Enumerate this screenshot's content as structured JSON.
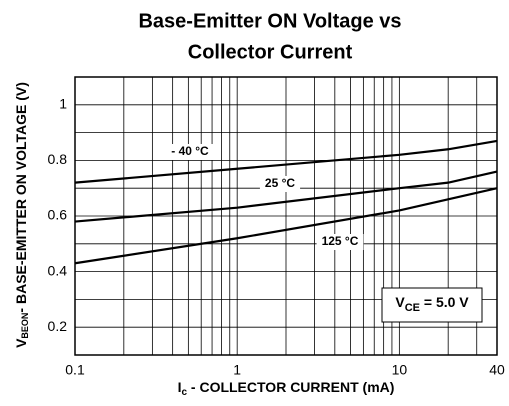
{
  "chart_data": {
    "type": "line",
    "title": [
      "Base-Emitter ON Voltage vs",
      "Collector Current"
    ],
    "xlabel": {
      "main": "I",
      "sub": "c",
      "rest": " - COLLECTOR CURRENT  (mA)"
    },
    "ylabel": {
      "main": "V",
      "sub": "BEON",
      "rest": "- BASE-EMITTER ON VOLTAGE (V)"
    },
    "annotation": {
      "main": "V",
      "sub": "CE",
      "rest": " = 5.0 V"
    },
    "xscale": "log",
    "xlim": [
      0.1,
      40
    ],
    "ylim": [
      0.1,
      1.1
    ],
    "xticks": [
      0.1,
      1,
      10,
      40
    ],
    "xminor": [
      0.2,
      0.3,
      0.4,
      0.5,
      0.6,
      0.7,
      0.8,
      0.9,
      2,
      3,
      4,
      5,
      6,
      7,
      8,
      9,
      20,
      30
    ],
    "yticks": [
      0.2,
      0.4,
      0.6,
      0.8,
      1
    ],
    "yminor": [
      0.3,
      0.5,
      0.7,
      0.9
    ],
    "grid": true,
    "x": [
      0.1,
      1,
      10,
      20,
      40
    ],
    "series": [
      {
        "name": "- 40 °C",
        "color": "#000000",
        "values": [
          0.72,
          0.77,
          0.82,
          0.84,
          0.87
        ]
      },
      {
        "name": "25 °C",
        "color": "#000000",
        "values": [
          0.58,
          0.63,
          0.7,
          0.72,
          0.76
        ]
      },
      {
        "name": "125 °C",
        "color": "#000000",
        "values": [
          0.43,
          0.52,
          0.62,
          0.66,
          0.7
        ]
      }
    ]
  }
}
